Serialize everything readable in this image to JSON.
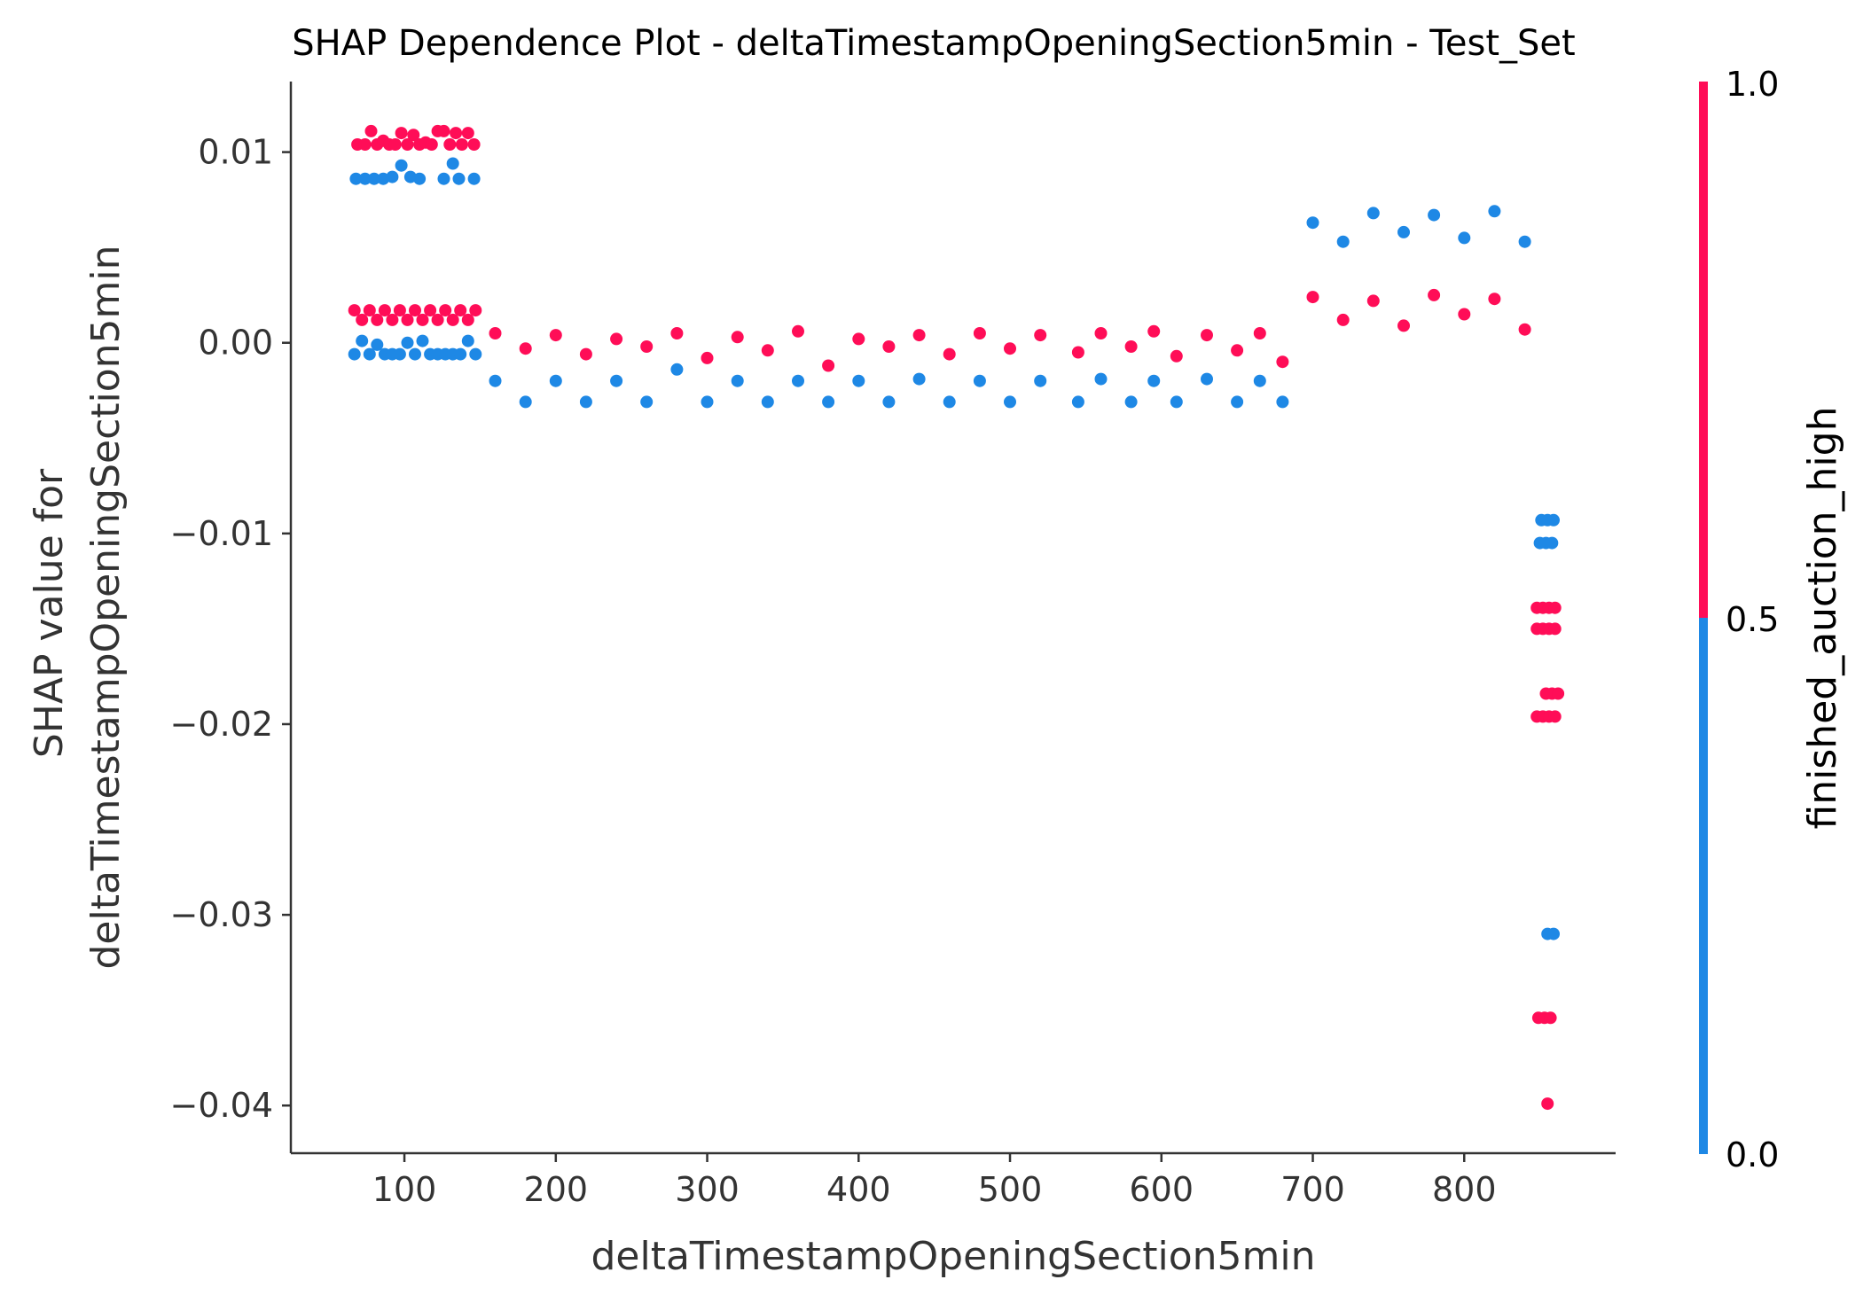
{
  "chart_data": {
    "type": "scatter",
    "title": "SHAP Dependence Plot - deltaTimestampOpeningSection5min - Test_Set",
    "xlabel": "deltaTimestampOpeningSection5min",
    "ylabel_line1": "SHAP value for",
    "ylabel_line2": "deltaTimestampOpeningSection5min",
    "xlim": [
      25,
      900
    ],
    "ylim": [
      -0.0425,
      0.0137
    ],
    "xticks": [
      100,
      200,
      300,
      400,
      500,
      600,
      700,
      800
    ],
    "xtick_labels": [
      "100",
      "200",
      "300",
      "400",
      "500",
      "600",
      "700",
      "800"
    ],
    "yticks": [
      0.01,
      0.0,
      -0.01,
      -0.02,
      -0.03,
      -0.04
    ],
    "ytick_labels": [
      "0.01",
      "0.00",
      "−0.01",
      "−0.02",
      "−0.03",
      "−0.04"
    ],
    "grid": false,
    "colorbar": {
      "label": "finished_auction_high",
      "ticks": [
        "1.0",
        "0.5",
        "0.0"
      ],
      "range": [
        0.0,
        1.0
      ],
      "colors": {
        "high": "#ff0d57",
        "low": "#1e88e5"
      }
    },
    "series": [
      {
        "color_value": 1,
        "color": "#ff0d57",
        "points": [
          {
            "x": 69,
            "y": 0.0104
          },
          {
            "x": 74,
            "y": 0.0104
          },
          {
            "x": 78,
            "y": 0.0111
          },
          {
            "x": 82,
            "y": 0.0104
          },
          {
            "x": 86,
            "y": 0.0106
          },
          {
            "x": 90,
            "y": 0.0104
          },
          {
            "x": 94,
            "y": 0.0104
          },
          {
            "x": 98,
            "y": 0.011
          },
          {
            "x": 102,
            "y": 0.0104
          },
          {
            "x": 106,
            "y": 0.0109
          },
          {
            "x": 110,
            "y": 0.0104
          },
          {
            "x": 114,
            "y": 0.0105
          },
          {
            "x": 118,
            "y": 0.0104
          },
          {
            "x": 122,
            "y": 0.0111
          },
          {
            "x": 126,
            "y": 0.0111
          },
          {
            "x": 130,
            "y": 0.0104
          },
          {
            "x": 134,
            "y": 0.011
          },
          {
            "x": 138,
            "y": 0.0104
          },
          {
            "x": 142,
            "y": 0.011
          },
          {
            "x": 146,
            "y": 0.0104
          },
          {
            "x": 67,
            "y": 0.0017
          },
          {
            "x": 72,
            "y": 0.0012
          },
          {
            "x": 77,
            "y": 0.0017
          },
          {
            "x": 82,
            "y": 0.0012
          },
          {
            "x": 87,
            "y": 0.0017
          },
          {
            "x": 92,
            "y": 0.0012
          },
          {
            "x": 97,
            "y": 0.0017
          },
          {
            "x": 102,
            "y": 0.0012
          },
          {
            "x": 107,
            "y": 0.0017
          },
          {
            "x": 112,
            "y": 0.0012
          },
          {
            "x": 117,
            "y": 0.0017
          },
          {
            "x": 122,
            "y": 0.0012
          },
          {
            "x": 127,
            "y": 0.0017
          },
          {
            "x": 132,
            "y": 0.0012
          },
          {
            "x": 137,
            "y": 0.0017
          },
          {
            "x": 142,
            "y": 0.0012
          },
          {
            "x": 147,
            "y": 0.0017
          },
          {
            "x": 160,
            "y": 0.0005
          },
          {
            "x": 180,
            "y": -0.0003
          },
          {
            "x": 200,
            "y": 0.0004
          },
          {
            "x": 220,
            "y": -0.0006
          },
          {
            "x": 240,
            "y": 0.0002
          },
          {
            "x": 260,
            "y": -0.0002
          },
          {
            "x": 280,
            "y": 0.0005
          },
          {
            "x": 300,
            "y": -0.0008
          },
          {
            "x": 320,
            "y": 0.0003
          },
          {
            "x": 340,
            "y": -0.0004
          },
          {
            "x": 360,
            "y": 0.0006
          },
          {
            "x": 380,
            "y": -0.0012
          },
          {
            "x": 400,
            "y": 0.0002
          },
          {
            "x": 420,
            "y": -0.0002
          },
          {
            "x": 440,
            "y": 0.0004
          },
          {
            "x": 460,
            "y": -0.0006
          },
          {
            "x": 480,
            "y": 0.0005
          },
          {
            "x": 500,
            "y": -0.0003
          },
          {
            "x": 520,
            "y": 0.0004
          },
          {
            "x": 545,
            "y": -0.0005
          },
          {
            "x": 560,
            "y": 0.0005
          },
          {
            "x": 580,
            "y": -0.0002
          },
          {
            "x": 595,
            "y": 0.0006
          },
          {
            "x": 610,
            "y": -0.0007
          },
          {
            "x": 630,
            "y": 0.0004
          },
          {
            "x": 650,
            "y": -0.0004
          },
          {
            "x": 665,
            "y": 0.0005
          },
          {
            "x": 680,
            "y": -0.001
          },
          {
            "x": 700,
            "y": 0.0024
          },
          {
            "x": 720,
            "y": 0.0012
          },
          {
            "x": 740,
            "y": 0.0022
          },
          {
            "x": 760,
            "y": 0.0009
          },
          {
            "x": 780,
            "y": 0.0025
          },
          {
            "x": 800,
            "y": 0.0015
          },
          {
            "x": 820,
            "y": 0.0023
          },
          {
            "x": 840,
            "y": 0.0007
          },
          {
            "x": 848,
            "y": -0.0139
          },
          {
            "x": 852,
            "y": -0.0139
          },
          {
            "x": 856,
            "y": -0.0139
          },
          {
            "x": 860,
            "y": -0.0139
          },
          {
            "x": 848,
            "y": -0.015
          },
          {
            "x": 852,
            "y": -0.015
          },
          {
            "x": 856,
            "y": -0.015
          },
          {
            "x": 860,
            "y": -0.015
          },
          {
            "x": 854,
            "y": -0.0184
          },
          {
            "x": 858,
            "y": -0.0184
          },
          {
            "x": 862,
            "y": -0.0184
          },
          {
            "x": 848,
            "y": -0.0196
          },
          {
            "x": 852,
            "y": -0.0196
          },
          {
            "x": 856,
            "y": -0.0196
          },
          {
            "x": 860,
            "y": -0.0196
          },
          {
            "x": 849,
            "y": -0.0354
          },
          {
            "x": 853,
            "y": -0.0354
          },
          {
            "x": 857,
            "y": -0.0354
          },
          {
            "x": 855,
            "y": -0.0399
          }
        ]
      },
      {
        "color_value": 0,
        "color": "#1e88e5",
        "points": [
          {
            "x": 68,
            "y": 0.0086
          },
          {
            "x": 74,
            "y": 0.0086
          },
          {
            "x": 80,
            "y": 0.0086
          },
          {
            "x": 86,
            "y": 0.0086
          },
          {
            "x": 92,
            "y": 0.0087
          },
          {
            "x": 98,
            "y": 0.0093
          },
          {
            "x": 104,
            "y": 0.0087
          },
          {
            "x": 110,
            "y": 0.0086
          },
          {
            "x": 126,
            "y": 0.0086
          },
          {
            "x": 132,
            "y": 0.0094
          },
          {
            "x": 136,
            "y": 0.0086
          },
          {
            "x": 146,
            "y": 0.0086
          },
          {
            "x": 67,
            "y": -0.0006
          },
          {
            "x": 72,
            "y": 0.0001
          },
          {
            "x": 77,
            "y": -0.0006
          },
          {
            "x": 82,
            "y": -0.0001
          },
          {
            "x": 87,
            "y": -0.0006
          },
          {
            "x": 92,
            "y": -0.0006
          },
          {
            "x": 97,
            "y": -0.0006
          },
          {
            "x": 102,
            "y": 0.0
          },
          {
            "x": 107,
            "y": -0.0006
          },
          {
            "x": 112,
            "y": 0.0001
          },
          {
            "x": 117,
            "y": -0.0006
          },
          {
            "x": 122,
            "y": -0.0006
          },
          {
            "x": 127,
            "y": -0.0006
          },
          {
            "x": 132,
            "y": -0.0006
          },
          {
            "x": 137,
            "y": -0.0006
          },
          {
            "x": 142,
            "y": 0.0001
          },
          {
            "x": 147,
            "y": -0.0006
          },
          {
            "x": 160,
            "y": -0.002
          },
          {
            "x": 180,
            "y": -0.0031
          },
          {
            "x": 200,
            "y": -0.002
          },
          {
            "x": 220,
            "y": -0.0031
          },
          {
            "x": 240,
            "y": -0.002
          },
          {
            "x": 260,
            "y": -0.0031
          },
          {
            "x": 280,
            "y": -0.0014
          },
          {
            "x": 300,
            "y": -0.0031
          },
          {
            "x": 320,
            "y": -0.002
          },
          {
            "x": 340,
            "y": -0.0031
          },
          {
            "x": 360,
            "y": -0.002
          },
          {
            "x": 380,
            "y": -0.0031
          },
          {
            "x": 400,
            "y": -0.002
          },
          {
            "x": 420,
            "y": -0.0031
          },
          {
            "x": 440,
            "y": -0.0019
          },
          {
            "x": 460,
            "y": -0.0031
          },
          {
            "x": 480,
            "y": -0.002
          },
          {
            "x": 500,
            "y": -0.0031
          },
          {
            "x": 520,
            "y": -0.002
          },
          {
            "x": 545,
            "y": -0.0031
          },
          {
            "x": 560,
            "y": -0.0019
          },
          {
            "x": 580,
            "y": -0.0031
          },
          {
            "x": 595,
            "y": -0.002
          },
          {
            "x": 610,
            "y": -0.0031
          },
          {
            "x": 630,
            "y": -0.0019
          },
          {
            "x": 650,
            "y": -0.0031
          },
          {
            "x": 665,
            "y": -0.002
          },
          {
            "x": 680,
            "y": -0.0031
          },
          {
            "x": 700,
            "y": 0.0063
          },
          {
            "x": 720,
            "y": 0.0053
          },
          {
            "x": 740,
            "y": 0.0068
          },
          {
            "x": 760,
            "y": 0.0058
          },
          {
            "x": 780,
            "y": 0.0067
          },
          {
            "x": 800,
            "y": 0.0055
          },
          {
            "x": 820,
            "y": 0.0069
          },
          {
            "x": 840,
            "y": 0.0053
          },
          {
            "x": 851,
            "y": -0.0093
          },
          {
            "x": 855,
            "y": -0.0093
          },
          {
            "x": 859,
            "y": -0.0093
          },
          {
            "x": 850,
            "y": -0.0105
          },
          {
            "x": 854,
            "y": -0.0105
          },
          {
            "x": 858,
            "y": -0.0105
          },
          {
            "x": 855,
            "y": -0.031
          },
          {
            "x": 859,
            "y": -0.031
          }
        ]
      }
    ]
  }
}
